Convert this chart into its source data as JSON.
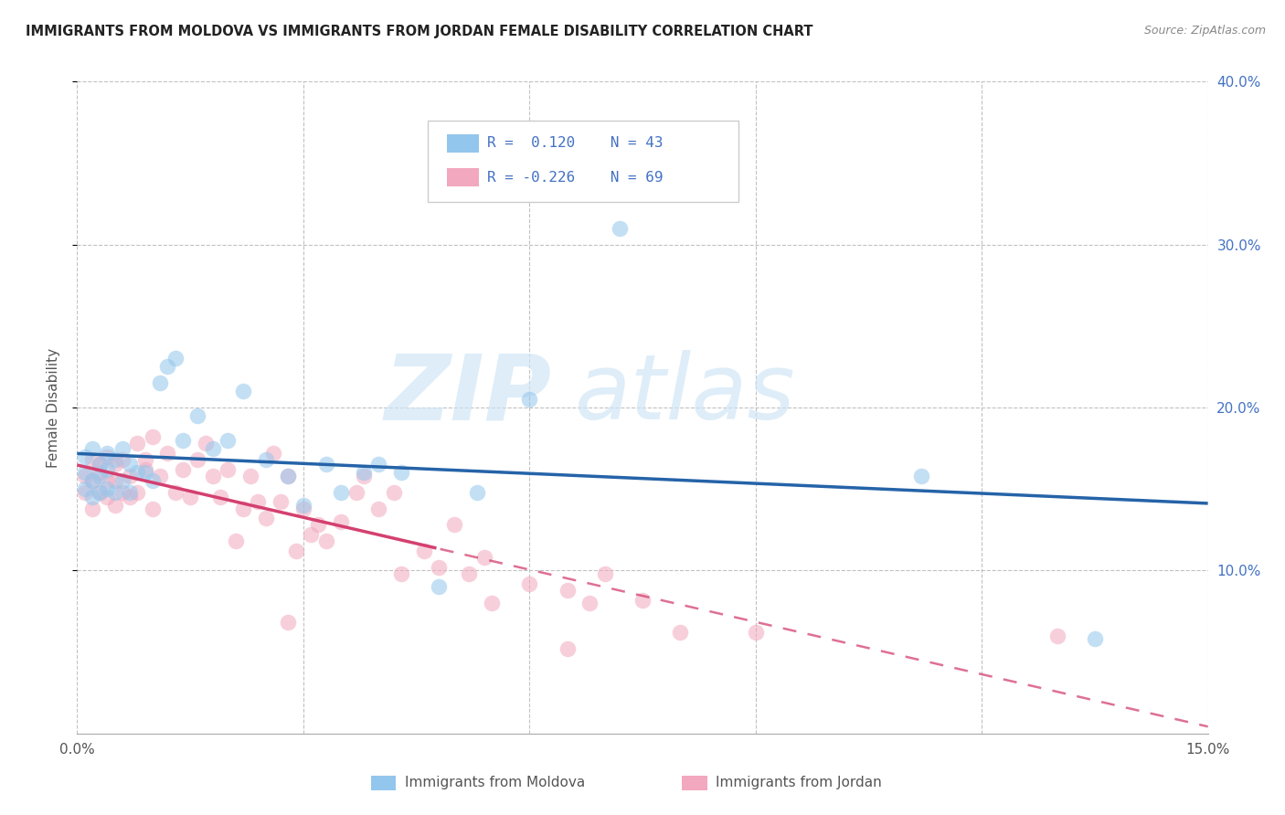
{
  "title": "IMMIGRANTS FROM MOLDOVA VS IMMIGRANTS FROM JORDAN FEMALE DISABILITY CORRELATION CHART",
  "source": "Source: ZipAtlas.com",
  "ylabel": "Female Disability",
  "xlim": [
    0,
    0.15
  ],
  "ylim": [
    0,
    0.4
  ],
  "moldova_color": "#93C6EC",
  "jordan_color": "#F2A8BE",
  "moldova_line_color": "#2563A8",
  "jordan_line_color": "#D44070",
  "moldova_R": 0.12,
  "moldova_N": 43,
  "jordan_R": -0.226,
  "jordan_N": 69,
  "moldova_x": [
    0.001,
    0.001,
    0.001,
    0.002,
    0.002,
    0.002,
    0.003,
    0.003,
    0.003,
    0.004,
    0.004,
    0.004,
    0.005,
    0.005,
    0.006,
    0.006,
    0.007,
    0.007,
    0.008,
    0.009,
    0.01,
    0.011,
    0.012,
    0.013,
    0.014,
    0.016,
    0.018,
    0.02,
    0.022,
    0.025,
    0.028,
    0.03,
    0.033,
    0.035,
    0.038,
    0.04,
    0.043,
    0.048,
    0.053,
    0.06,
    0.072,
    0.112,
    0.135
  ],
  "moldova_y": [
    0.15,
    0.16,
    0.17,
    0.145,
    0.155,
    0.175,
    0.148,
    0.158,
    0.165,
    0.15,
    0.162,
    0.172,
    0.148,
    0.168,
    0.155,
    0.175,
    0.148,
    0.165,
    0.16,
    0.16,
    0.155,
    0.215,
    0.225,
    0.23,
    0.18,
    0.195,
    0.175,
    0.18,
    0.21,
    0.168,
    0.158,
    0.14,
    0.165,
    0.148,
    0.16,
    0.165,
    0.16,
    0.09,
    0.148,
    0.205,
    0.31,
    0.158,
    0.058
  ],
  "jordan_x": [
    0.001,
    0.001,
    0.002,
    0.002,
    0.002,
    0.003,
    0.003,
    0.003,
    0.004,
    0.004,
    0.004,
    0.005,
    0.005,
    0.005,
    0.006,
    0.006,
    0.007,
    0.007,
    0.008,
    0.008,
    0.009,
    0.009,
    0.01,
    0.01,
    0.011,
    0.012,
    0.013,
    0.014,
    0.015,
    0.016,
    0.017,
    0.018,
    0.019,
    0.02,
    0.021,
    0.022,
    0.023,
    0.024,
    0.025,
    0.026,
    0.027,
    0.028,
    0.029,
    0.03,
    0.031,
    0.032,
    0.033,
    0.035,
    0.037,
    0.04,
    0.043,
    0.046,
    0.048,
    0.05,
    0.052,
    0.054,
    0.06,
    0.065,
    0.068,
    0.07,
    0.075,
    0.08,
    0.09,
    0.038,
    0.042,
    0.055,
    0.028,
    0.065,
    0.13
  ],
  "jordan_y": [
    0.148,
    0.158,
    0.138,
    0.155,
    0.168,
    0.148,
    0.16,
    0.165,
    0.145,
    0.155,
    0.17,
    0.14,
    0.155,
    0.165,
    0.148,
    0.168,
    0.145,
    0.158,
    0.178,
    0.148,
    0.162,
    0.168,
    0.182,
    0.138,
    0.158,
    0.172,
    0.148,
    0.162,
    0.145,
    0.168,
    0.178,
    0.158,
    0.145,
    0.162,
    0.118,
    0.138,
    0.158,
    0.142,
    0.132,
    0.172,
    0.142,
    0.158,
    0.112,
    0.138,
    0.122,
    0.128,
    0.118,
    0.13,
    0.148,
    0.138,
    0.098,
    0.112,
    0.102,
    0.128,
    0.098,
    0.108,
    0.092,
    0.088,
    0.08,
    0.098,
    0.082,
    0.062,
    0.062,
    0.158,
    0.148,
    0.08,
    0.068,
    0.052,
    0.06
  ],
  "watermark_zip": "ZIP",
  "watermark_atlas": "atlas",
  "background_color": "#ffffff",
  "grid_color": "#bbbbbb",
  "ytick_color": "#4472c4",
  "text_color": "#555555"
}
